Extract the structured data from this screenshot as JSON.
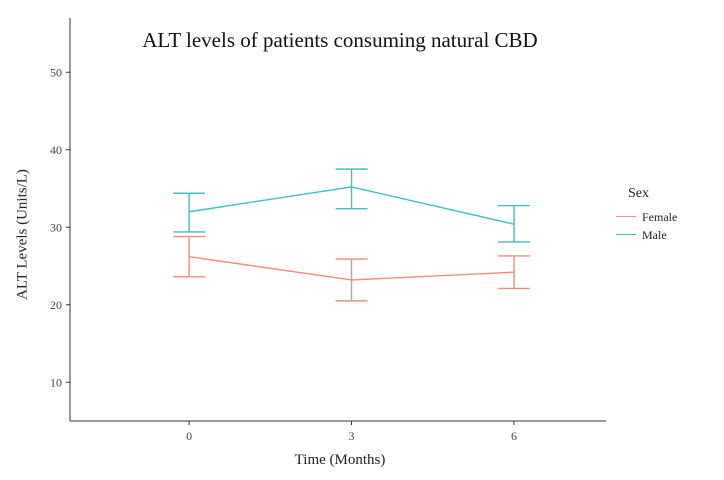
{
  "chart_data": {
    "type": "line",
    "title": "ALT levels of patients consuming natural CBD",
    "xlabel": "Time (Months)",
    "ylabel": "ALT Levels (Units/L)",
    "x": [
      0,
      3,
      6
    ],
    "xticks": [
      "0",
      "3",
      "6"
    ],
    "yticks": [
      "10",
      "20",
      "30",
      "40",
      "50"
    ],
    "xlim": [
      -2.2,
      7.7
    ],
    "ylim": [
      5,
      57
    ],
    "grid": false,
    "legend": {
      "title": "Sex",
      "placement": "right"
    },
    "series": [
      {
        "name": "Female",
        "color": "#F08C80",
        "values": [
          26.2,
          23.2,
          24.2
        ],
        "error_low": [
          23.6,
          20.5,
          22.1
        ],
        "error_high": [
          28.8,
          25.9,
          26.3
        ]
      },
      {
        "name": "Male",
        "color": "#3CBFC4",
        "values": [
          32.0,
          35.2,
          30.4
        ],
        "error_low": [
          29.4,
          32.4,
          28.1
        ],
        "error_high": [
          34.4,
          37.5,
          32.8
        ]
      }
    ]
  }
}
